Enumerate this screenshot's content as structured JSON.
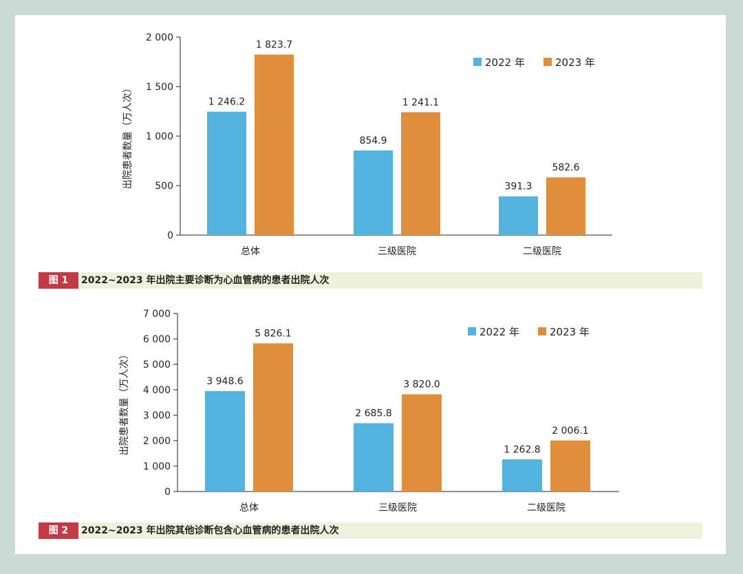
{
  "colors": {
    "c2022": "#52b3de",
    "c2023": "#e08e3c",
    "tag": "#c23a43"
  },
  "chart_data": [
    {
      "type": "bar",
      "title": "2022~2023 年出院主要诊断为心血管病的患者出院人次",
      "figure_label": "图 1",
      "ylabel": "出院患者数量（万人次）",
      "xlabel": "",
      "ylim": [
        0,
        2000
      ],
      "yticks": [
        0,
        500,
        1000,
        1500,
        2000
      ],
      "ytick_labels": [
        "0",
        "500",
        "1 000",
        "1 500",
        "2 000"
      ],
      "categories": [
        "总体",
        "三级医院",
        "二级医院"
      ],
      "series": [
        {
          "name": "2022 年",
          "values": [
            1246.2,
            854.9,
            391.3
          ],
          "labels": [
            "1 246.2",
            "854.9",
            "391.3"
          ]
        },
        {
          "name": "2023 年",
          "values": [
            1823.7,
            1241.1,
            582.6
          ],
          "labels": [
            "1 823.7",
            "1 241.1",
            "582.6"
          ]
        }
      ],
      "legend": "top-right"
    },
    {
      "type": "bar",
      "title": "2022~2023 年出院其他诊断包含心血管病的患者出院人次",
      "figure_label": "图 2",
      "ylabel": "出院患者数量（万人次）",
      "xlabel": "",
      "ylim": [
        0,
        7000
      ],
      "yticks": [
        0,
        1000,
        2000,
        3000,
        4000,
        5000,
        6000,
        7000
      ],
      "ytick_labels": [
        "0",
        "1 000",
        "2 000",
        "3 000",
        "4 000",
        "5 000",
        "6 000",
        "7 000"
      ],
      "categories": [
        "总体",
        "三级医院",
        "二级医院"
      ],
      "series": [
        {
          "name": "2022 年",
          "values": [
            3948.6,
            2685.8,
            1262.8
          ],
          "labels": [
            "3 948.6",
            "2 685.8",
            "1 262.8"
          ]
        },
        {
          "name": "2023 年",
          "values": [
            5826.1,
            3820.0,
            2006.1
          ],
          "labels": [
            "5 826.1",
            "3 820.0",
            "2 006.1"
          ]
        }
      ],
      "legend": "top-right"
    }
  ]
}
